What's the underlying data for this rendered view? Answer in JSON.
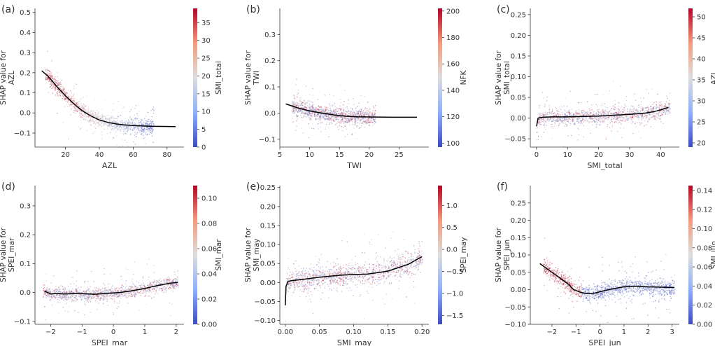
{
  "figure": {
    "colors": {
      "cmap_low": "#3b4cc0",
      "cmap_mid": "#dddddd",
      "cmap_high": "#b40426",
      "trend": "#000000",
      "axis": "#333333"
    },
    "panels_order": [
      "a",
      "b",
      "c",
      "d",
      "e",
      "f"
    ]
  },
  "chart_data": [
    {
      "panel_label": "(a)",
      "type": "scatter",
      "xlabel": "AZL",
      "ylabel_lines": [
        "SHAP value for",
        "AZL"
      ],
      "colorbar_label": "SMI_total",
      "xlim": [
        2,
        90
      ],
      "ylim": [
        -0.17,
        0.52
      ],
      "xticks": [
        20,
        40,
        60,
        80
      ],
      "yticks": [
        -0.1,
        0.0,
        0.1,
        0.2,
        0.3,
        0.4,
        0.5
      ],
      "xtick_labels": [
        "20",
        "40",
        "60",
        "80"
      ],
      "ytick_labels": [
        "−0.1",
        "0.0",
        "0.1",
        "0.2",
        "0.3",
        "0.4",
        "0.5"
      ],
      "colorbar_range": [
        0,
        39
      ],
      "colorbar_ticks": [
        0,
        5,
        10,
        15,
        20,
        25,
        30,
        35
      ],
      "colorbar_tick_labels": [
        "0",
        "5",
        "10",
        "15",
        "20",
        "25",
        "30",
        "35"
      ],
      "cloud_x_range": [
        8,
        72
      ],
      "cloud_spread": 0.035,
      "outlier_spread": 0.12,
      "color_mode": "trend",
      "trend": {
        "x": [
          6,
          10,
          15,
          20,
          25,
          30,
          35,
          40,
          45,
          50,
          55,
          60,
          70,
          85
        ],
        "y": [
          0.21,
          0.18,
          0.13,
          0.085,
          0.045,
          0.01,
          -0.015,
          -0.035,
          -0.047,
          -0.055,
          -0.06,
          -0.063,
          -0.066,
          -0.068
        ]
      }
    },
    {
      "panel_label": "(b)",
      "type": "scatter",
      "xlabel": "TWI",
      "ylabel_lines": [
        "SHAP value for",
        "TWI"
      ],
      "colorbar_label": "NFK",
      "xlim": [
        5,
        30
      ],
      "ylim": [
        -0.13,
        0.4
      ],
      "xticks": [
        5,
        10,
        15,
        20,
        25
      ],
      "yticks": [
        -0.1,
        0.0,
        0.1,
        0.2,
        0.3
      ],
      "xtick_labels": [
        "5",
        "10",
        "15",
        "20",
        "25"
      ],
      "ytick_labels": [
        "−0.1",
        "0.0",
        "0.1",
        "0.2",
        "0.3"
      ],
      "colorbar_range": [
        97,
        202
      ],
      "colorbar_ticks": [
        100,
        120,
        140,
        160,
        180,
        200
      ],
      "colorbar_tick_labels": [
        "100",
        "120",
        "140",
        "160",
        "180",
        "200"
      ],
      "cloud_x_range": [
        7,
        21
      ],
      "cloud_spread": 0.028,
      "outlier_spread": 0.1,
      "color_mode": "random",
      "trend": {
        "x": [
          6,
          8,
          10,
          12,
          14,
          16,
          18,
          20,
          24,
          28
        ],
        "y": [
          0.035,
          0.02,
          0.008,
          0.0,
          -0.007,
          -0.012,
          -0.014,
          -0.015,
          -0.016,
          -0.016
        ]
      }
    },
    {
      "panel_label": "(c)",
      "type": "scatter",
      "xlabel": "SMI_total",
      "ylabel_lines": [
        "SHAP value for",
        "SMI_total"
      ],
      "colorbar_label": "AZL",
      "xlim": [
        -2,
        46
      ],
      "ylim": [
        -0.07,
        0.265
      ],
      "xticks": [
        0,
        10,
        20,
        30,
        40
      ],
      "yticks": [
        -0.05,
        0.0,
        0.05,
        0.1,
        0.15,
        0.2,
        0.25
      ],
      "xtick_labels": [
        "0",
        "10",
        "20",
        "30",
        "40"
      ],
      "ytick_labels": [
        "−0.05",
        "0.00",
        "0.05",
        "0.10",
        "0.15",
        "0.20",
        "0.25"
      ],
      "colorbar_range": [
        19,
        52
      ],
      "colorbar_ticks": [
        20,
        25,
        30,
        35,
        40,
        45,
        50
      ],
      "colorbar_tick_labels": [
        "20",
        "25",
        "30",
        "35",
        "40",
        "45",
        "50"
      ],
      "cloud_x_range": [
        0,
        43
      ],
      "cloud_spread": 0.018,
      "outlier_spread": 0.07,
      "color_mode": "random",
      "trend": {
        "x": [
          0,
          0.5,
          2,
          5,
          10,
          15,
          20,
          25,
          30,
          35,
          38,
          40,
          42.5
        ],
        "y": [
          -0.02,
          0.0,
          0.002,
          0.003,
          0.003,
          0.004,
          0.005,
          0.007,
          0.009,
          0.012,
          0.016,
          0.02,
          0.026
        ]
      }
    },
    {
      "panel_label": "(d)",
      "type": "scatter",
      "xlabel": "SPEI_mar",
      "ylabel_lines": [
        "SHAP value for",
        "SPEI_mar"
      ],
      "colorbar_label": "SMI_mar",
      "xlim": [
        -2.5,
        2.25
      ],
      "ylim": [
        -0.11,
        0.37
      ],
      "xticks": [
        -2,
        -1,
        0,
        1,
        2
      ],
      "yticks": [
        -0.1,
        0.0,
        0.1,
        0.2,
        0.3
      ],
      "xtick_labels": [
        "−2",
        "−1",
        "0",
        "1",
        "2"
      ],
      "ytick_labels": [
        "−0.1",
        "0.0",
        "0.1",
        "0.2",
        "0.3"
      ],
      "colorbar_range": [
        0,
        0.11
      ],
      "colorbar_ticks": [
        0,
        0.02,
        0.04,
        0.06,
        0.08,
        0.1
      ],
      "colorbar_tick_labels": [
        "0.00",
        "0.02",
        "0.04",
        "0.06",
        "0.08",
        "0.10"
      ],
      "cloud_x_range": [
        -2.25,
        2.05
      ],
      "cloud_spread": 0.022,
      "outlier_spread": 0.09,
      "color_mode": "random",
      "trend": {
        "x": [
          -2.2,
          -2.0,
          -1.8,
          -1.6,
          -1.3,
          -1.0,
          -0.6,
          -0.2,
          0.2,
          0.6,
          1.0,
          1.4,
          1.8,
          2.05
        ],
        "y": [
          0.005,
          -0.005,
          -0.003,
          -0.005,
          -0.004,
          -0.004,
          -0.006,
          -0.003,
          0.0,
          0.006,
          0.014,
          0.024,
          0.032,
          0.035
        ]
      }
    },
    {
      "panel_label": "(e)",
      "type": "scatter",
      "xlabel": "SMI_may",
      "ylabel_lines": [
        "SHAP value for",
        "SMI_may"
      ],
      "colorbar_label": "SPEI_may",
      "xlim": [
        -0.008,
        0.21
      ],
      "ylim": [
        -0.11,
        0.255
      ],
      "xticks": [
        0.0,
        0.05,
        0.1,
        0.15,
        0.2
      ],
      "yticks": [
        -0.1,
        -0.05,
        0.0,
        0.05,
        0.1,
        0.15,
        0.2,
        0.25
      ],
      "xtick_labels": [
        "0.00",
        "0.05",
        "0.10",
        "0.15",
        "0.20"
      ],
      "ytick_labels": [
        "−0.10",
        "−0.05",
        "0.00",
        "0.05",
        "0.10",
        "0.15",
        "0.20",
        "0.25"
      ],
      "colorbar_range": [
        -1.7,
        1.45
      ],
      "colorbar_ticks": [
        -1.5,
        -1.0,
        -0.5,
        0.0,
        0.5,
        1.0
      ],
      "colorbar_tick_labels": [
        "−1.5",
        "−1.0",
        "−0.5",
        "0.0",
        "0.5",
        "1.0"
      ],
      "cloud_x_range": [
        0.0,
        0.2
      ],
      "cloud_spread": 0.03,
      "outlier_spread": 0.09,
      "color_mode": "random",
      "trend": {
        "x": [
          0.0,
          0.001,
          0.004,
          0.01,
          0.03,
          0.05,
          0.08,
          0.1,
          0.12,
          0.15,
          0.18,
          0.2
        ],
        "y": [
          -0.06,
          -0.01,
          0.003,
          0.005,
          0.009,
          0.014,
          0.019,
          0.021,
          0.022,
          0.03,
          0.048,
          0.068
        ]
      }
    },
    {
      "panel_label": "(f)",
      "type": "scatter",
      "xlabel": "SPEI_jun",
      "ylabel_lines": [
        "SHAP value for",
        "SPEI_jun"
      ],
      "colorbar_label": "SMI_jun",
      "xlim": [
        -2.9,
        3.3
      ],
      "ylim": [
        -0.1,
        0.3
      ],
      "xticks": [
        -2,
        -1,
        0,
        1,
        2,
        3
      ],
      "yticks": [
        -0.1,
        -0.05,
        0.0,
        0.05,
        0.1,
        0.15,
        0.2,
        0.25
      ],
      "xtick_labels": [
        "−2",
        "−1",
        "0",
        "1",
        "2",
        "3"
      ],
      "ytick_labels": [
        "−0.10",
        "−0.05",
        "0.00",
        "0.05",
        "0.10",
        "0.15",
        "0.20",
        "0.25"
      ],
      "colorbar_range": [
        0,
        0.145
      ],
      "colorbar_ticks": [
        0,
        0.02,
        0.04,
        0.06,
        0.08,
        0.1,
        0.12,
        0.14
      ],
      "colorbar_tick_labels": [
        "0.00",
        "0.02",
        "0.04",
        "0.06",
        "0.08",
        "0.10",
        "0.12",
        "0.14"
      ],
      "cloud_x_range": [
        -2.4,
        3.1
      ],
      "cloud_spread": 0.022,
      "outlier_spread": 0.08,
      "color_mode": "leftred",
      "trend": {
        "x": [
          -2.5,
          -2.2,
          -1.9,
          -1.6,
          -1.3,
          -1.1,
          -0.8,
          -0.5,
          -0.2,
          0.0,
          0.5,
          1.0,
          1.5,
          2.0,
          2.5,
          3.1
        ],
        "y": [
          0.075,
          0.06,
          0.045,
          0.03,
          0.015,
          0.0,
          -0.008,
          -0.012,
          -0.01,
          -0.006,
          0.002,
          0.008,
          0.01,
          0.008,
          0.007,
          0.006
        ]
      }
    }
  ]
}
